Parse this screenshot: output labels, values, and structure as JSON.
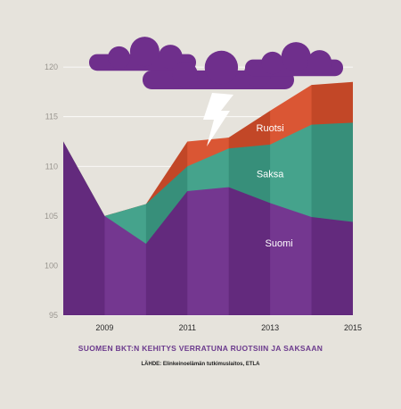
{
  "chart_data": {
    "type": "area",
    "title": "SUOMEN BKT:N KEHITYS VERRATUNA RUOTSIIN JA SAKSAAN",
    "source": "LÄHDE: Elinkeinoelämän tutkimuslaitos, ETLA",
    "x": [
      2008,
      2009,
      2010,
      2011,
      2012,
      2013,
      2014,
      2015
    ],
    "x_tick_labels": [
      "2009",
      "2011",
      "2013",
      "2015"
    ],
    "x_tick_values": [
      2009,
      2011,
      2013,
      2015
    ],
    "y_ticks": [
      95,
      100,
      105,
      110,
      115,
      120
    ],
    "ylim": [
      95,
      121
    ],
    "grid": true,
    "series": [
      {
        "name": "Suomi",
        "values": [
          112.5,
          105.0,
          102.2,
          107.5,
          107.9,
          106.3,
          104.9,
          104.4
        ]
      },
      {
        "name": "Saksa",
        "values": [
          112.5,
          105.0,
          106.2,
          110.0,
          111.8,
          112.2,
          114.2,
          114.4
        ]
      },
      {
        "name": "Ruotsi",
        "values": [
          112.5,
          105.0,
          106.2,
          112.5,
          112.9,
          115.6,
          118.2,
          118.5
        ]
      }
    ],
    "colors": {
      "Suomi": "#6f2f8c",
      "Saksa": "#3ea088",
      "Ruotsi": "#d9502c",
      "clouds": "#6f2f8c",
      "lightning": "#ffffff",
      "background": "#e6e3dc"
    },
    "decorations": [
      "clouds",
      "lightning-bolt"
    ]
  }
}
